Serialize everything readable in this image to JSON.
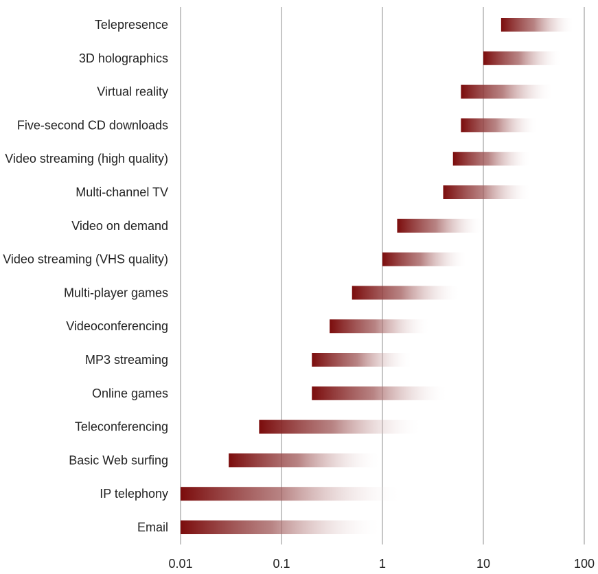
{
  "chart_data": {
    "type": "bar",
    "orientation": "horizontal",
    "x_scale": "log",
    "xlim": [
      0.01,
      100
    ],
    "x_ticks": [
      0.01,
      0.1,
      1,
      10,
      100
    ],
    "x_tick_labels": [
      "0.01",
      "0.1",
      "1",
      "10",
      "100"
    ],
    "grid": "vertical lines at major ticks",
    "bar_color": "#7b0c0c",
    "bar_fill": "gradient from solid dark red at start value fading to white at end value",
    "categories": [
      "Telepresence",
      "3D holographics",
      "Virtual reality",
      "Five-second CD downloads",
      "Video streaming (high quality)",
      "Multi-channel TV",
      "Video on demand",
      "Video streaming (VHS quality)",
      "Multi-player games",
      "Videoconferencing",
      "MP3 streaming",
      "Online games",
      "Teleconferencing",
      "Basic Web surfing",
      "IP telephony",
      "Email"
    ],
    "ranges": [
      [
        15,
        80
      ],
      [
        10,
        60
      ],
      [
        6,
        50
      ],
      [
        6,
        35
      ],
      [
        5,
        30
      ],
      [
        4,
        30
      ],
      [
        1.4,
        10
      ],
      [
        1,
        7
      ],
      [
        0.5,
        6
      ],
      [
        0.3,
        3
      ],
      [
        0.2,
        2
      ],
      [
        0.2,
        4.5
      ],
      [
        0.06,
        2.5
      ],
      [
        0.03,
        1
      ],
      [
        0.01,
        1.6
      ],
      [
        0.01,
        1
      ]
    ]
  }
}
